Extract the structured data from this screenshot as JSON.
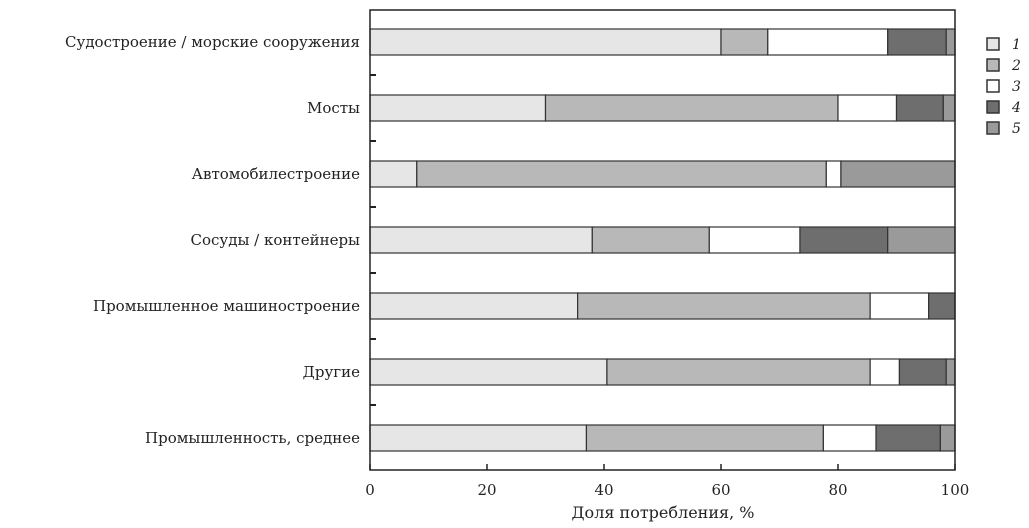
{
  "chart_data": {
    "type": "bar",
    "orientation": "horizontal",
    "stacked": true,
    "title": "",
    "xlabel": "Доля потребления, %",
    "ylabel": "",
    "xlim": [
      0,
      100
    ],
    "xticks": [
      "0",
      "20",
      "40",
      "60",
      "80",
      "100"
    ],
    "grid": false,
    "legend_position": "right",
    "categories": [
      "Судостроение / морские сооружения",
      "Мосты",
      "Автомобилестроение",
      "Сосуды / контейнеры",
      "Промышленное машиностроение",
      "Другие",
      "Промышленность, среднее"
    ],
    "series": [
      {
        "name": "1",
        "color": "#e6e6e6",
        "values": [
          60,
          30,
          8,
          38,
          35.5,
          40.5,
          37
        ]
      },
      {
        "name": "2",
        "color": "#b8b8b8",
        "values": [
          8,
          50,
          70,
          20,
          50,
          45,
          40.5
        ]
      },
      {
        "name": "3",
        "color": "#ffffff",
        "values": [
          20.5,
          10,
          2.5,
          15.5,
          10,
          5,
          9
        ]
      },
      {
        "name": "4",
        "color": "#6e6e6e",
        "values": [
          10,
          8,
          0,
          15,
          4.5,
          8,
          11
        ]
      },
      {
        "name": "5",
        "color": "#9a9a9a",
        "values": [
          1.5,
          2,
          19.5,
          11.5,
          0,
          1.5,
          2.5
        ]
      }
    ]
  }
}
